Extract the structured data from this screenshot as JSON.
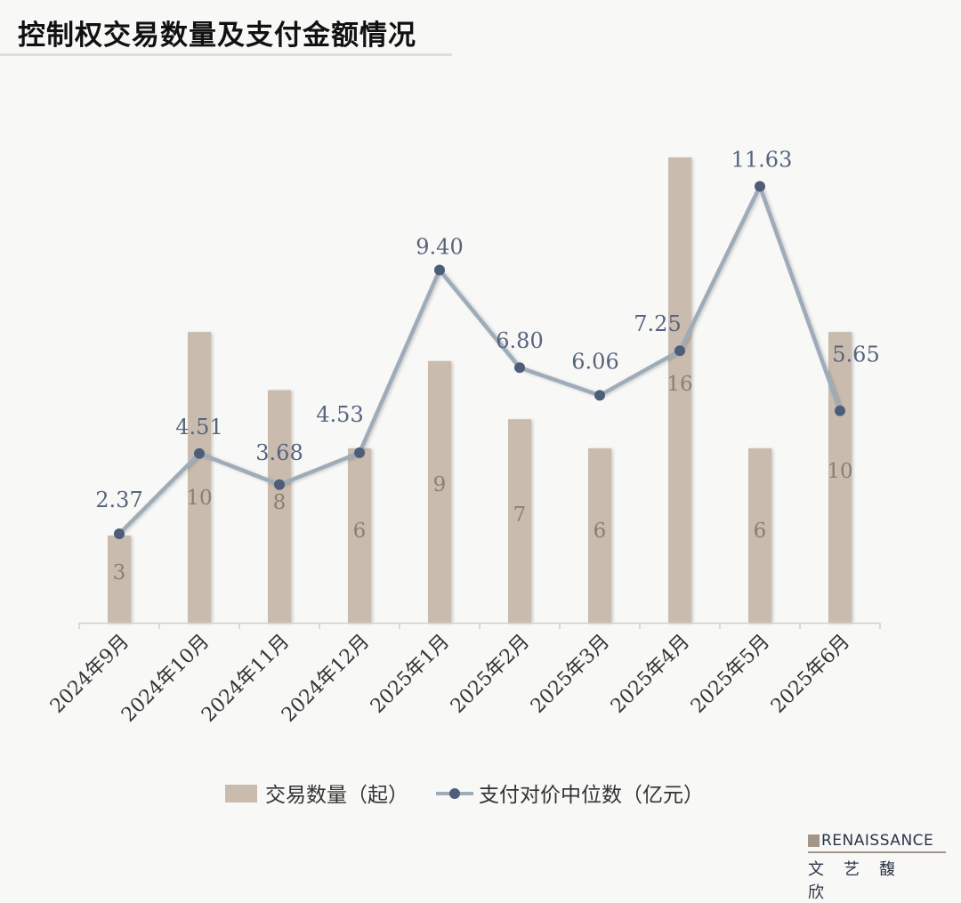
{
  "title": "控制权交易数量及支付金额情况",
  "logo": {
    "en": "RENAISSANCE",
    "cn": "文艺馥欣"
  },
  "colors": {
    "bar": "#c9bcaf",
    "line": "#9eabb9",
    "marker": "#4e5d78",
    "line_label": "#56647d",
    "bar_label": "#8a7f76",
    "axis": "#d0d0d0"
  },
  "chart_data": {
    "type": "bar+line",
    "categories": [
      "2024年9月",
      "2024年10月",
      "2024年11月",
      "2024年12月",
      "2025年1月",
      "2025年2月",
      "2025年3月",
      "2025年4月",
      "2025年5月",
      "2025年6月"
    ],
    "series": [
      {
        "name": "交易数量（起）",
        "type": "bar",
        "axis": "left",
        "values": [
          3,
          10,
          8,
          6,
          9,
          7,
          6,
          16,
          6,
          10
        ]
      },
      {
        "name": "支付对价中位数（亿元）",
        "type": "line",
        "axis": "right",
        "values": [
          2.37,
          4.51,
          3.68,
          4.53,
          9.4,
          6.8,
          6.06,
          7.25,
          11.63,
          5.65
        ]
      }
    ],
    "y_left_lim": [
      0,
      16
    ],
    "y_right_lim": [
      0,
      12.4
    ],
    "grid": false,
    "legend": "bottom",
    "data_labels": true
  }
}
